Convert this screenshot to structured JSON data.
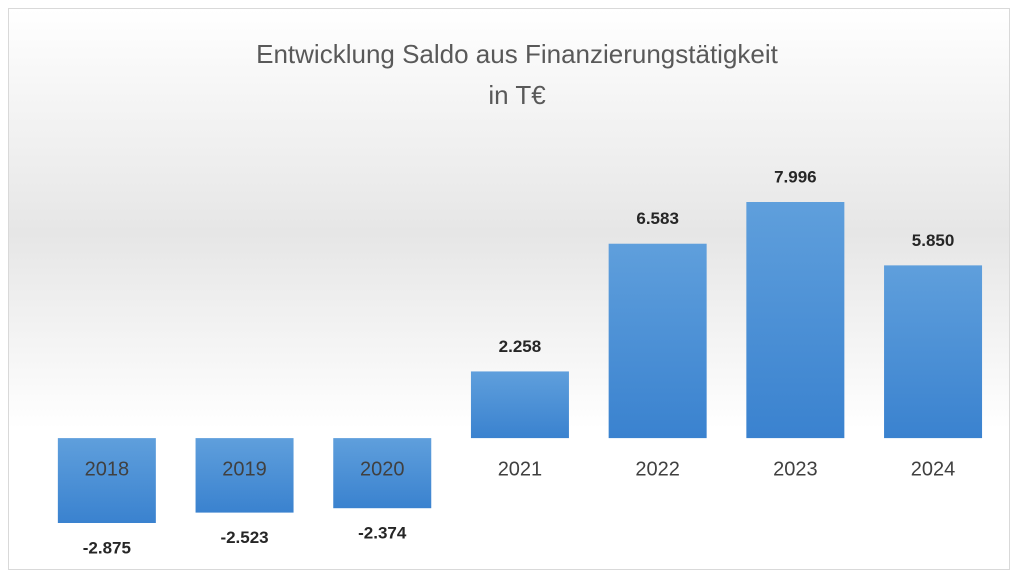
{
  "chart_data": {
    "type": "bar",
    "title": "Entwicklung Saldo aus Finanzierungstätigkeit",
    "subtitle": "in T€",
    "categories": [
      "2018",
      "2019",
      "2020",
      "2021",
      "2022",
      "2023",
      "2024"
    ],
    "values": [
      -2875,
      -2523,
      -2374,
      2258,
      6583,
      7996,
      5850
    ],
    "value_labels": [
      "-2.875",
      "-2.523",
      "-2.374",
      "2.258",
      "6.583",
      "7.996",
      "5.850"
    ],
    "color": "#4a8fd6"
  }
}
